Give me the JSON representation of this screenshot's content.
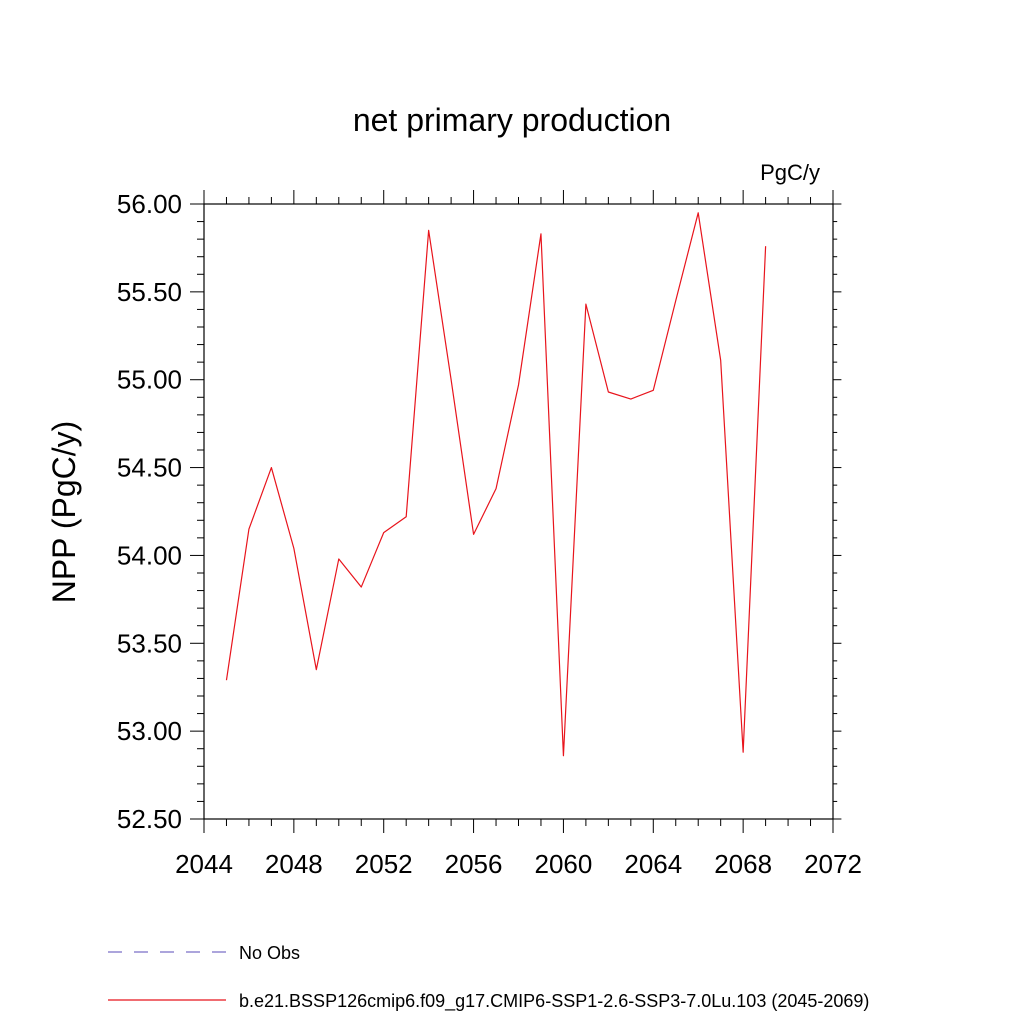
{
  "chart_data": {
    "type": "line",
    "title": "net primary production",
    "units_label": "PgC/y",
    "xlabel": "",
    "ylabel": "NPP  (PgC/y)",
    "xlim": [
      2044,
      2072
    ],
    "ylim": [
      52.5,
      56.0
    ],
    "x_ticks": [
      2044,
      2048,
      2052,
      2056,
      2060,
      2064,
      2068,
      2072
    ],
    "x_tick_labels": [
      "2044",
      "2048",
      "2052",
      "2056",
      "2060",
      "2064",
      "2068",
      "2072"
    ],
    "y_ticks": [
      52.5,
      53.0,
      53.5,
      54.0,
      54.5,
      55.0,
      55.5,
      56.0
    ],
    "y_tick_labels": [
      "52.50",
      "53.00",
      "53.50",
      "54.00",
      "54.50",
      "55.00",
      "55.50",
      "56.00"
    ],
    "grid": false,
    "legend_position": "bottom",
    "series": [
      {
        "name": "b.e21.BSSP126cmip6.f09_g17.CMIP6-SSP1-2.6-SSP3-7.0Lu.103 (2045-2069)",
        "color": "#e8141c",
        "line_style": "solid",
        "x": [
          2045,
          2046,
          2047,
          2048,
          2049,
          2050,
          2051,
          2052,
          2053,
          2054,
          2055,
          2056,
          2057,
          2058,
          2059,
          2060,
          2061,
          2062,
          2063,
          2064,
          2065,
          2066,
          2067,
          2068,
          2069
        ],
        "values": [
          53.29,
          54.15,
          54.5,
          54.04,
          53.35,
          53.98,
          53.82,
          54.13,
          54.22,
          55.85,
          55.0,
          54.12,
          54.38,
          54.97,
          55.83,
          52.86,
          55.43,
          54.93,
          54.89,
          54.94,
          55.45,
          55.95,
          55.11,
          52.88,
          55.76
        ]
      }
    ],
    "legend": [
      {
        "label": "No Obs",
        "color": "#7a6fc8",
        "line_style": "dashed"
      },
      {
        "label": "b.e21.BSSP126cmip6.f09_g17.CMIP6-SSP1-2.6-SSP3-7.0Lu.103 (2045-2069)",
        "color": "#e8141c",
        "line_style": "solid"
      }
    ]
  }
}
